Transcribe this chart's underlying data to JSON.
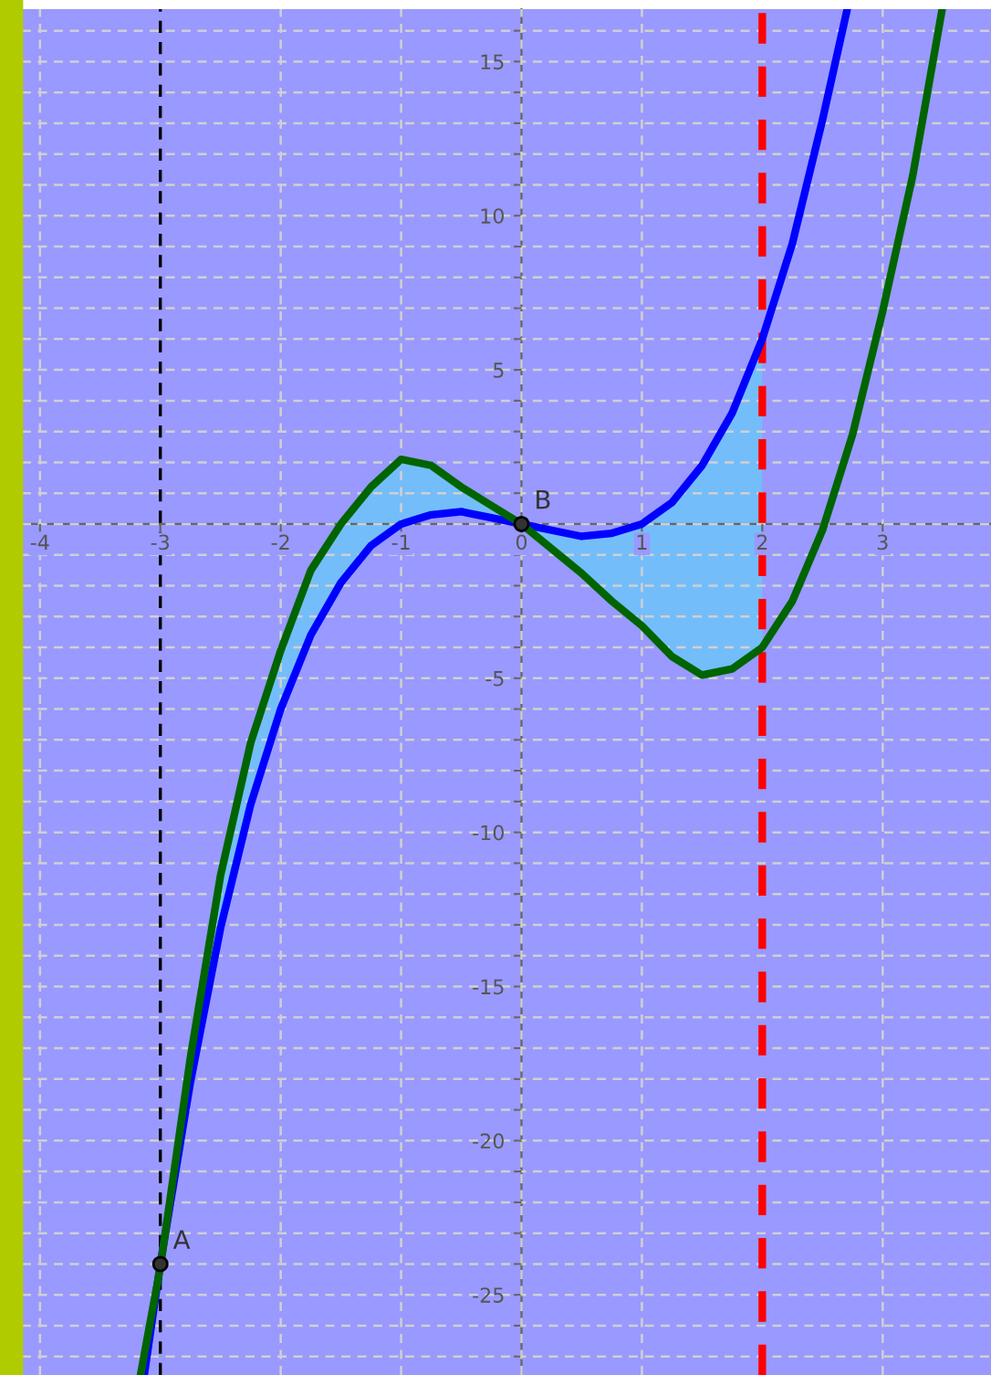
{
  "chart_data": {
    "type": "line",
    "xlim": [
      -4.15,
      3.9
    ],
    "ylim": [
      -27.6,
      16.7
    ],
    "xticks": [
      -4,
      -3,
      -2,
      -1,
      0,
      1,
      2,
      3
    ],
    "yticks": [
      {
        "value": -27,
        "label": null
      },
      {
        "value": -26,
        "label": null
      },
      -25,
      {
        "value": -24,
        "label": null
      },
      {
        "value": -23,
        "label": null
      },
      {
        "value": -22,
        "label": null
      },
      {
        "value": -21,
        "label": null
      },
      -20,
      {
        "value": -19,
        "label": null
      },
      {
        "value": -18,
        "label": null
      },
      {
        "value": -17,
        "label": null
      },
      {
        "value": -16,
        "label": null
      },
      -15,
      {
        "value": -14,
        "label": null
      },
      {
        "value": -13,
        "label": null
      },
      {
        "value": -12,
        "label": null
      },
      {
        "value": -11,
        "label": null
      },
      -10,
      {
        "value": -9,
        "label": null
      },
      {
        "value": -8,
        "label": null
      },
      {
        "value": -7,
        "label": null
      },
      {
        "value": -6,
        "label": null
      },
      -5,
      {
        "value": -4,
        "label": null
      },
      {
        "value": -3,
        "label": null
      },
      {
        "value": -2,
        "label": null
      },
      {
        "value": -1,
        "label": null
      },
      {
        "value": 0,
        "label": null
      },
      {
        "value": 1,
        "label": null
      },
      {
        "value": 2,
        "label": null
      },
      {
        "value": 3,
        "label": null
      },
      {
        "value": 4,
        "label": null
      },
      5,
      {
        "value": 6,
        "label": null
      },
      {
        "value": 7,
        "label": null
      },
      {
        "value": 8,
        "label": null
      },
      {
        "value": 9,
        "label": null
      },
      10,
      {
        "value": 11,
        "label": null
      },
      {
        "value": 12,
        "label": null
      },
      {
        "value": 13,
        "label": null
      },
      {
        "value": 14,
        "label": null
      },
      15,
      {
        "value": 16,
        "label": null
      }
    ],
    "grid": true,
    "line_style": "solid",
    "series": [
      {
        "color": "#0000ff",
        "x": [
          -3.13,
          -3,
          -2.75,
          -2.5,
          -2.25,
          -2,
          -1.75,
          -1.5,
          -1.25,
          -1,
          -0.75,
          -0.5,
          -0.25,
          0,
          0.25,
          0.5,
          0.75,
          1,
          1.25,
          1.5,
          1.75,
          2,
          2.25,
          2.5,
          2.7
        ],
        "values": [
          -27.5,
          -24,
          -18.1,
          -13.1,
          -9.1,
          -6,
          -3.6,
          -1.9,
          -0.7,
          0,
          0.3,
          0.4,
          0.2,
          0,
          -0.2,
          -0.4,
          -0.3,
          0,
          0.7,
          1.9,
          3.6,
          6,
          9.1,
          13.1,
          16.6
        ],
        "lower": [
          null,
          -24.1,
          -18.1,
          -13.1,
          -9.1,
          -6,
          -3.6,
          -1.9,
          -0.7,
          0,
          0.3,
          0.4,
          0.2,
          0,
          -0.8,
          -1.6,
          -2.5,
          -3.3,
          -4.3,
          -4.9,
          -4.7,
          -4,
          null,
          null,
          null
        ],
        "upper": [
          null,
          -24,
          -17.3,
          -11.4,
          -7.1,
          -4.1,
          -1.5,
          0,
          1.2,
          2.1,
          1.9,
          1.2,
          0.6,
          0,
          -0.2,
          -0.4,
          -0.3,
          0,
          0.7,
          1.9,
          3.6,
          6,
          null,
          null,
          null
        ]
      },
      {
        "color": "#006400",
        "x": [
          -3.16,
          -3,
          -2.75,
          -2.5,
          -2.25,
          -2,
          -1.75,
          -1.5,
          -1.25,
          -1,
          -0.75,
          -0.5,
          -0.25,
          0,
          0.25,
          0.5,
          0.75,
          1,
          1.25,
          1.5,
          1.75,
          2,
          2.25,
          2.5,
          2.75,
          3,
          3.25,
          3.49
        ],
        "values": [
          -27.5,
          -24.1,
          -17.3,
          -11.4,
          -7.1,
          -4.1,
          -1.5,
          0,
          1.2,
          2.1,
          1.9,
          1.2,
          0.6,
          0,
          -0.8,
          -1.6,
          -2.5,
          -3.3,
          -4.3,
          -4.9,
          -4.7,
          -4,
          -2.5,
          -0.2,
          2.9,
          6.9,
          11.3,
          16.6
        ]
      },
      {
        "type": "scatter",
        "color": "#333333",
        "marker": "circle",
        "x": [
          -3,
          0
        ],
        "values": [
          -24,
          0
        ],
        "value_labels": [
          "A",
          "B"
        ]
      }
    ],
    "ref_lines": [
      {
        "axis": "x",
        "value": -3,
        "color": "#000000",
        "line_style": "dashed"
      },
      {
        "axis": "x",
        "value": 2,
        "color": "#ff0000",
        "line_style": "dashed"
      }
    ]
  }
}
